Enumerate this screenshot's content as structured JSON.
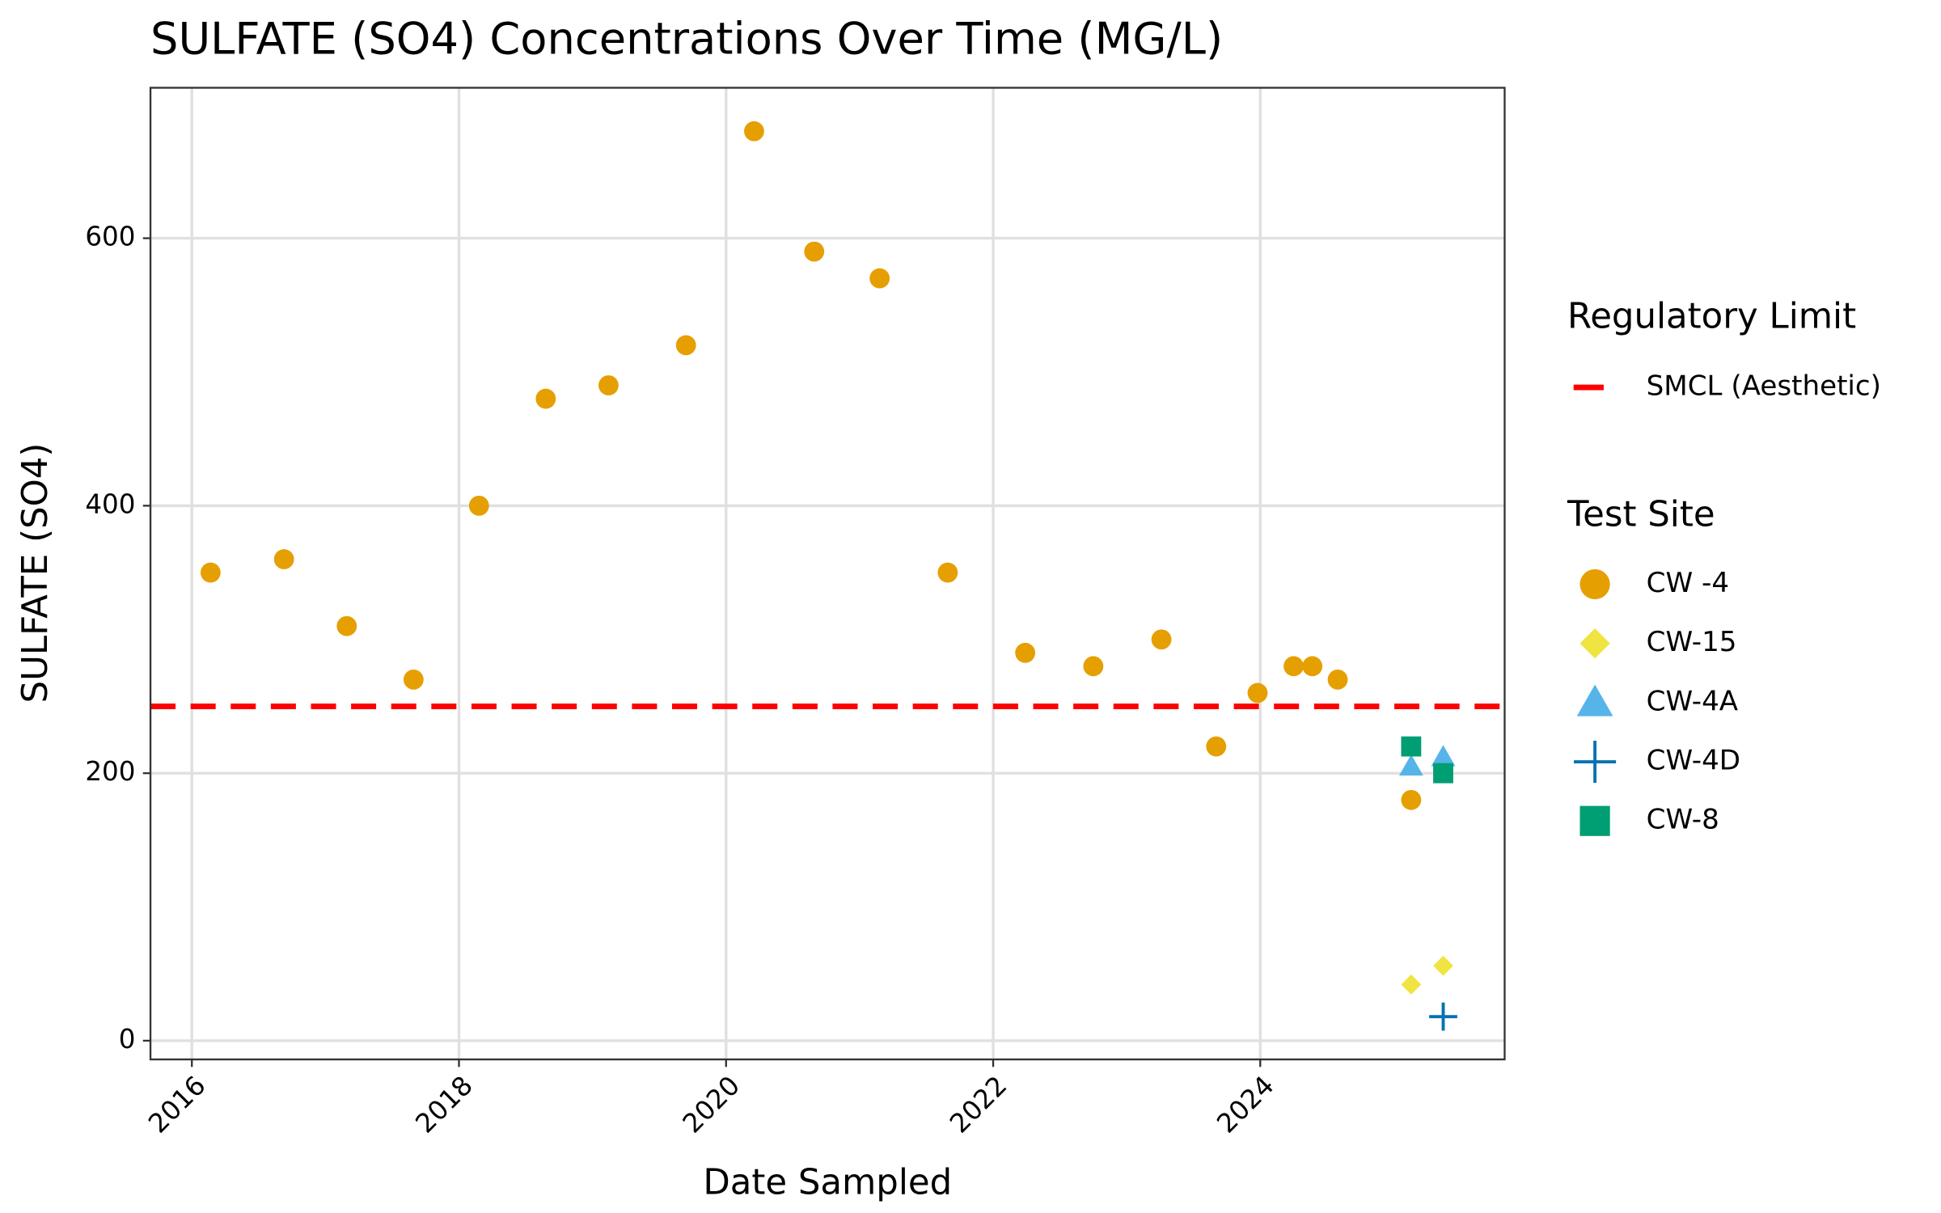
{
  "chart_data": {
    "type": "scatter",
    "title": "SULFATE (SO4) Concentrations Over Time (MG/L)",
    "x_label": "Date Sampled",
    "y_label": "SULFATE (SO4)",
    "xlim": [
      2015.69,
      2025.83
    ],
    "ylim": [
      -14,
      712.5
    ],
    "xticks": [
      2016,
      2018,
      2020,
      2022,
      2024
    ],
    "yticks": [
      0,
      200,
      400,
      600
    ],
    "grid": true,
    "legend_position": "right",
    "hlines_legend_title": "Regulatory Limit",
    "hlines": [
      {
        "name": "SMCL (Aesthetic)",
        "value": 250,
        "color": "#ff0000",
        "dash": true
      }
    ],
    "legend_title": "Test Site",
    "series": [
      {
        "name": "CW -4",
        "color": "#E69F00",
        "shape": "circle",
        "x": [
          2016.14,
          2016.69,
          2017.16,
          2017.66,
          2018.15,
          2018.65,
          2019.12,
          2019.7,
          2020.21,
          2020.66,
          2021.15,
          2021.66,
          2022.24,
          2022.75,
          2023.26,
          2023.67,
          2023.98,
          2024.25,
          2024.39,
          2024.58,
          2025.13
        ],
        "values": [
          350,
          360,
          310,
          270,
          400,
          480,
          490,
          520,
          680,
          590,
          570,
          350,
          290,
          280,
          300,
          220,
          260,
          280,
          280,
          270,
          180
        ]
      },
      {
        "name": "CW-15",
        "color": "#F0E442",
        "shape": "diamond",
        "x": [
          2025.13,
          2025.37
        ],
        "values": [
          42,
          56
        ]
      },
      {
        "name": "CW-4A",
        "color": "#56B4E9",
        "shape": "triangle",
        "x": [
          2025.13,
          2025.37
        ],
        "values": [
          205,
          212
        ]
      },
      {
        "name": "CW-4D",
        "color": "#0072B2",
        "shape": "plus",
        "x": [
          2025.37
        ],
        "values": [
          18
        ]
      },
      {
        "name": "CW-8",
        "color": "#009E73",
        "shape": "square",
        "x": [
          2025.13,
          2025.37
        ],
        "values": [
          220,
          200
        ]
      }
    ]
  }
}
